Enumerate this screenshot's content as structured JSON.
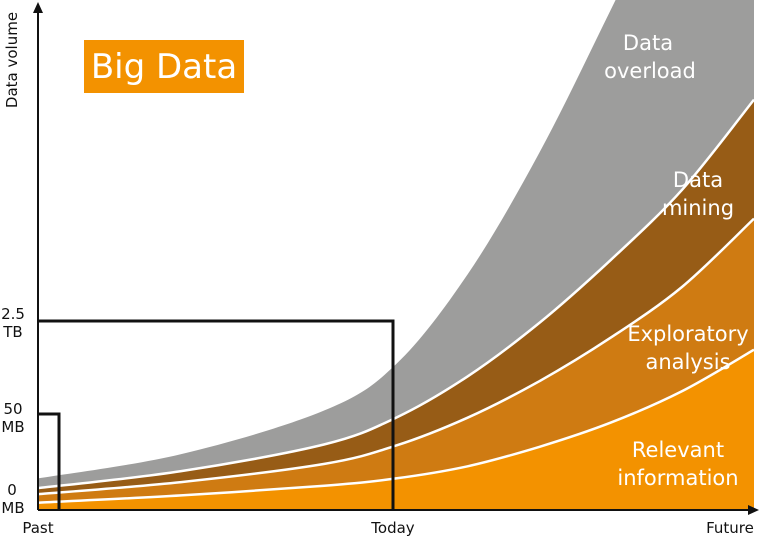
{
  "chart_data": {
    "type": "area",
    "title": "Big Data",
    "ylabel": "Data volume",
    "x_ticks": [
      "Past",
      "Today",
      "Future"
    ],
    "y_ticks": [
      {
        "line1": "0",
        "line2": "MB"
      },
      {
        "line1": "50",
        "line2": "MB"
      },
      {
        "line1": "2.5",
        "line2": "TB"
      }
    ],
    "grid": false,
    "stacked": true,
    "x": [
      0,
      0.2,
      0.4,
      0.5,
      0.6,
      0.7,
      0.8,
      0.9,
      1.0
    ],
    "series": [
      {
        "name": "Relevant information",
        "label_lines": [
          "Relevant",
          "information"
        ],
        "color": "#f39200",
        "values": [
          0.3,
          0.6,
          1.0,
          1.3,
          1.8,
          2.6,
          3.6,
          4.9,
          6.6
        ]
      },
      {
        "name": "Exploratory analysis",
        "label_lines": [
          "Exploratory",
          "analysis"
        ],
        "color": "#cf7b12",
        "values": [
          0.35,
          0.55,
          0.9,
          1.35,
          2.0,
          2.7,
          3.5,
          4.3,
          5.4
        ]
      },
      {
        "name": "Data mining",
        "label_lines": [
          "Data",
          "mining"
        ],
        "color": "#975c16",
        "values": [
          0.25,
          0.45,
          0.8,
          1.15,
          1.7,
          2.4,
          3.2,
          4.0,
          4.9
        ]
      },
      {
        "name": "Data overload",
        "label_lines": [
          "Data",
          "overload"
        ],
        "color": "#9d9d9c",
        "values": [
          0.4,
          0.7,
          1.4,
          2.2,
          4.2,
          7.0,
          10.3,
          13.5,
          16.0
        ]
      }
    ],
    "markers": [
      {
        "x_tick": "Past",
        "y_tick": "50 MB"
      },
      {
        "x_tick": "Today",
        "y_tick": "2.5 TB"
      }
    ],
    "colors": {
      "title_badge": "#f39200",
      "marker_line": "#111111",
      "band_divider": "#ffffff"
    }
  }
}
